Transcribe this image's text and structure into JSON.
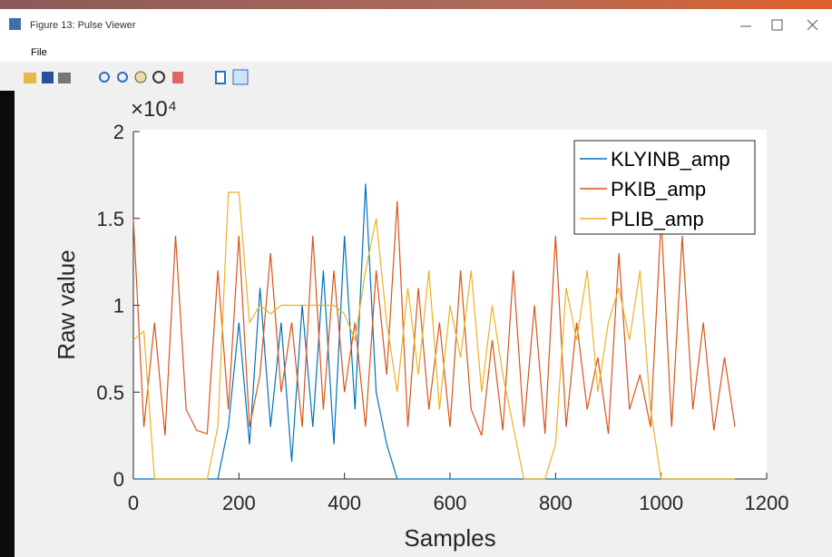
{
  "window": {
    "title": "Figure 13: Pulse Viewer",
    "menu": [
      "File"
    ]
  },
  "chart_data": {
    "type": "line",
    "x_label": "Samples",
    "y_label": "Raw value",
    "y_multiplier": "×10⁴",
    "x": [
      0,
      20,
      40,
      60,
      80,
      100,
      120,
      140,
      160,
      180,
      200,
      220,
      240,
      260,
      280,
      300,
      320,
      340,
      360,
      380,
      400,
      420,
      440,
      460,
      480,
      500,
      520,
      540,
      560,
      580,
      600,
      620,
      640,
      660,
      680,
      700,
      720,
      740,
      760,
      780,
      800,
      820,
      840,
      860,
      880,
      900,
      920,
      940,
      960,
      980,
      1000,
      1020,
      1040,
      1060,
      1080,
      1100,
      1120,
      1140
    ],
    "series": [
      {
        "name": "KLYINB_amp",
        "color": "#0072bd",
        "values": [
          0,
          0,
          0,
          0,
          0,
          0,
          0,
          0,
          0,
          3000,
          9000,
          2000,
          11000,
          3000,
          9000,
          1000,
          10000,
          3000,
          12000,
          2000,
          14000,
          4000,
          17000,
          5000,
          2000,
          0,
          0,
          0,
          0,
          0,
          0,
          0,
          0,
          0,
          0,
          0,
          0,
          0,
          0,
          0,
          0,
          0,
          0,
          0,
          0,
          0,
          0,
          0,
          0,
          0,
          0,
          0,
          0,
          0,
          0,
          0,
          0,
          0
        ]
      },
      {
        "name": "PKIB_amp",
        "color": "#d95319",
        "values": [
          15000,
          3000,
          9000,
          2500,
          14000,
          4000,
          2800,
          2600,
          12000,
          4000,
          14000,
          3000,
          6000,
          13000,
          5000,
          9000,
          3000,
          14000,
          4000,
          12000,
          5000,
          9000,
          3000,
          12000,
          6000,
          16000,
          3000,
          11000,
          4000,
          9000,
          3000,
          12000,
          4000,
          2500,
          8000,
          2800,
          12000,
          3000,
          10000,
          2600,
          14000,
          3000,
          9000,
          4000,
          7000,
          2600,
          13000,
          4000,
          6000,
          3000,
          15000,
          3000,
          14000,
          4000,
          9000,
          2800,
          7000,
          3000
        ]
      },
      {
        "name": "PLIB_amp",
        "color": "#edb120",
        "values": [
          8000,
          8500,
          0,
          0,
          0,
          0,
          0,
          0,
          3000,
          16500,
          16500,
          9000,
          10000,
          9500,
          10000,
          10000,
          10000,
          10000,
          10000,
          10000,
          9500,
          8000,
          12000,
          15000,
          9000,
          5000,
          11000,
          6000,
          12000,
          4000,
          10000,
          7000,
          12000,
          5000,
          10000,
          6000,
          3000,
          0,
          0,
          0,
          2000,
          11000,
          8000,
          12000,
          5000,
          9000,
          11000,
          8000,
          12000,
          4000,
          0,
          0,
          0,
          0,
          0,
          0,
          0,
          0
        ]
      }
    ],
    "xlim": [
      0,
      1200
    ],
    "xticks": [
      0,
      200,
      400,
      600,
      800,
      1000,
      1200
    ],
    "ylim": [
      0,
      20000
    ],
    "yticks": [
      0,
      {
        "value": 5000,
        "label": "0.5"
      },
      {
        "value": 10000,
        "label": "1"
      },
      {
        "value": 15000,
        "label": "1.5"
      },
      {
        "value": 20000,
        "label": "2"
      }
    ],
    "legend": "upper right",
    "grid": false
  }
}
